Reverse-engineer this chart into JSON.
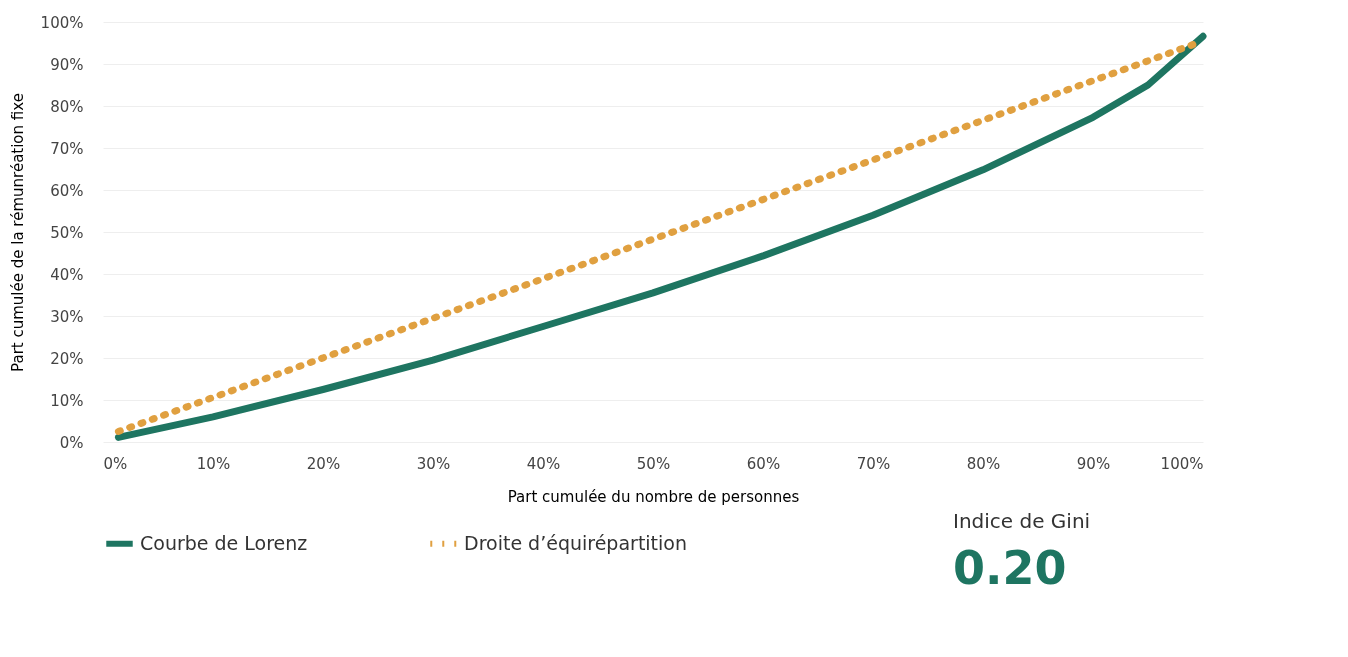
{
  "chart_data": {
    "type": "line",
    "xlabel": "Part cumulée du nombre de personnes",
    "ylabel": "Part cumulée de la rémunréation fixe",
    "series": [
      {
        "name": "Courbe de Lorenz",
        "color": "#1e7561",
        "line_style": "solid",
        "x": [
          1.4,
          10,
          20,
          30,
          40,
          50,
          60,
          70,
          80,
          90,
          95,
          100
        ],
        "values": [
          1.1,
          6,
          12.5,
          19.5,
          27.5,
          35.5,
          44.3,
          54,
          64.8,
          77.3,
          85,
          96.6
        ]
      },
      {
        "name": "Droite d’équirépartition",
        "color": "#e0a040",
        "line_style": "dotted",
        "x": [
          1.4,
          50,
          99.5
        ],
        "values": [
          2.5,
          48.3,
          95
        ]
      }
    ],
    "xlim": [
      0,
      100
    ],
    "ylim": [
      0,
      100
    ],
    "xticks": [
      {
        "value": 0,
        "label": "0%"
      },
      {
        "value": 10,
        "label": "10%"
      },
      {
        "value": 20,
        "label": "20%"
      },
      {
        "value": 30,
        "label": "30%"
      },
      {
        "value": 40,
        "label": "40%"
      },
      {
        "value": 50,
        "label": "50%"
      },
      {
        "value": 60,
        "label": "60%"
      },
      {
        "value": 70,
        "label": "70%"
      },
      {
        "value": 80,
        "label": "80%"
      },
      {
        "value": 90,
        "label": "90%"
      },
      {
        "value": 100,
        "label": "100%"
      }
    ],
    "yticks": [
      {
        "value": 0,
        "label": "0%"
      },
      {
        "value": 10,
        "label": "10%"
      },
      {
        "value": 20,
        "label": "20%"
      },
      {
        "value": 30,
        "label": "30%"
      },
      {
        "value": 40,
        "label": "40%"
      },
      {
        "value": 50,
        "label": "50%"
      },
      {
        "value": 60,
        "label": "60%"
      },
      {
        "value": 70,
        "label": "70%"
      },
      {
        "value": 80,
        "label": "80%"
      },
      {
        "value": 90,
        "label": "90%"
      },
      {
        "value": 100,
        "label": "100%"
      }
    ],
    "grid": "y",
    "legend": "bottom left",
    "marker": "none",
    "annotations": [
      "Indice de Gini",
      "0.20"
    ]
  }
}
